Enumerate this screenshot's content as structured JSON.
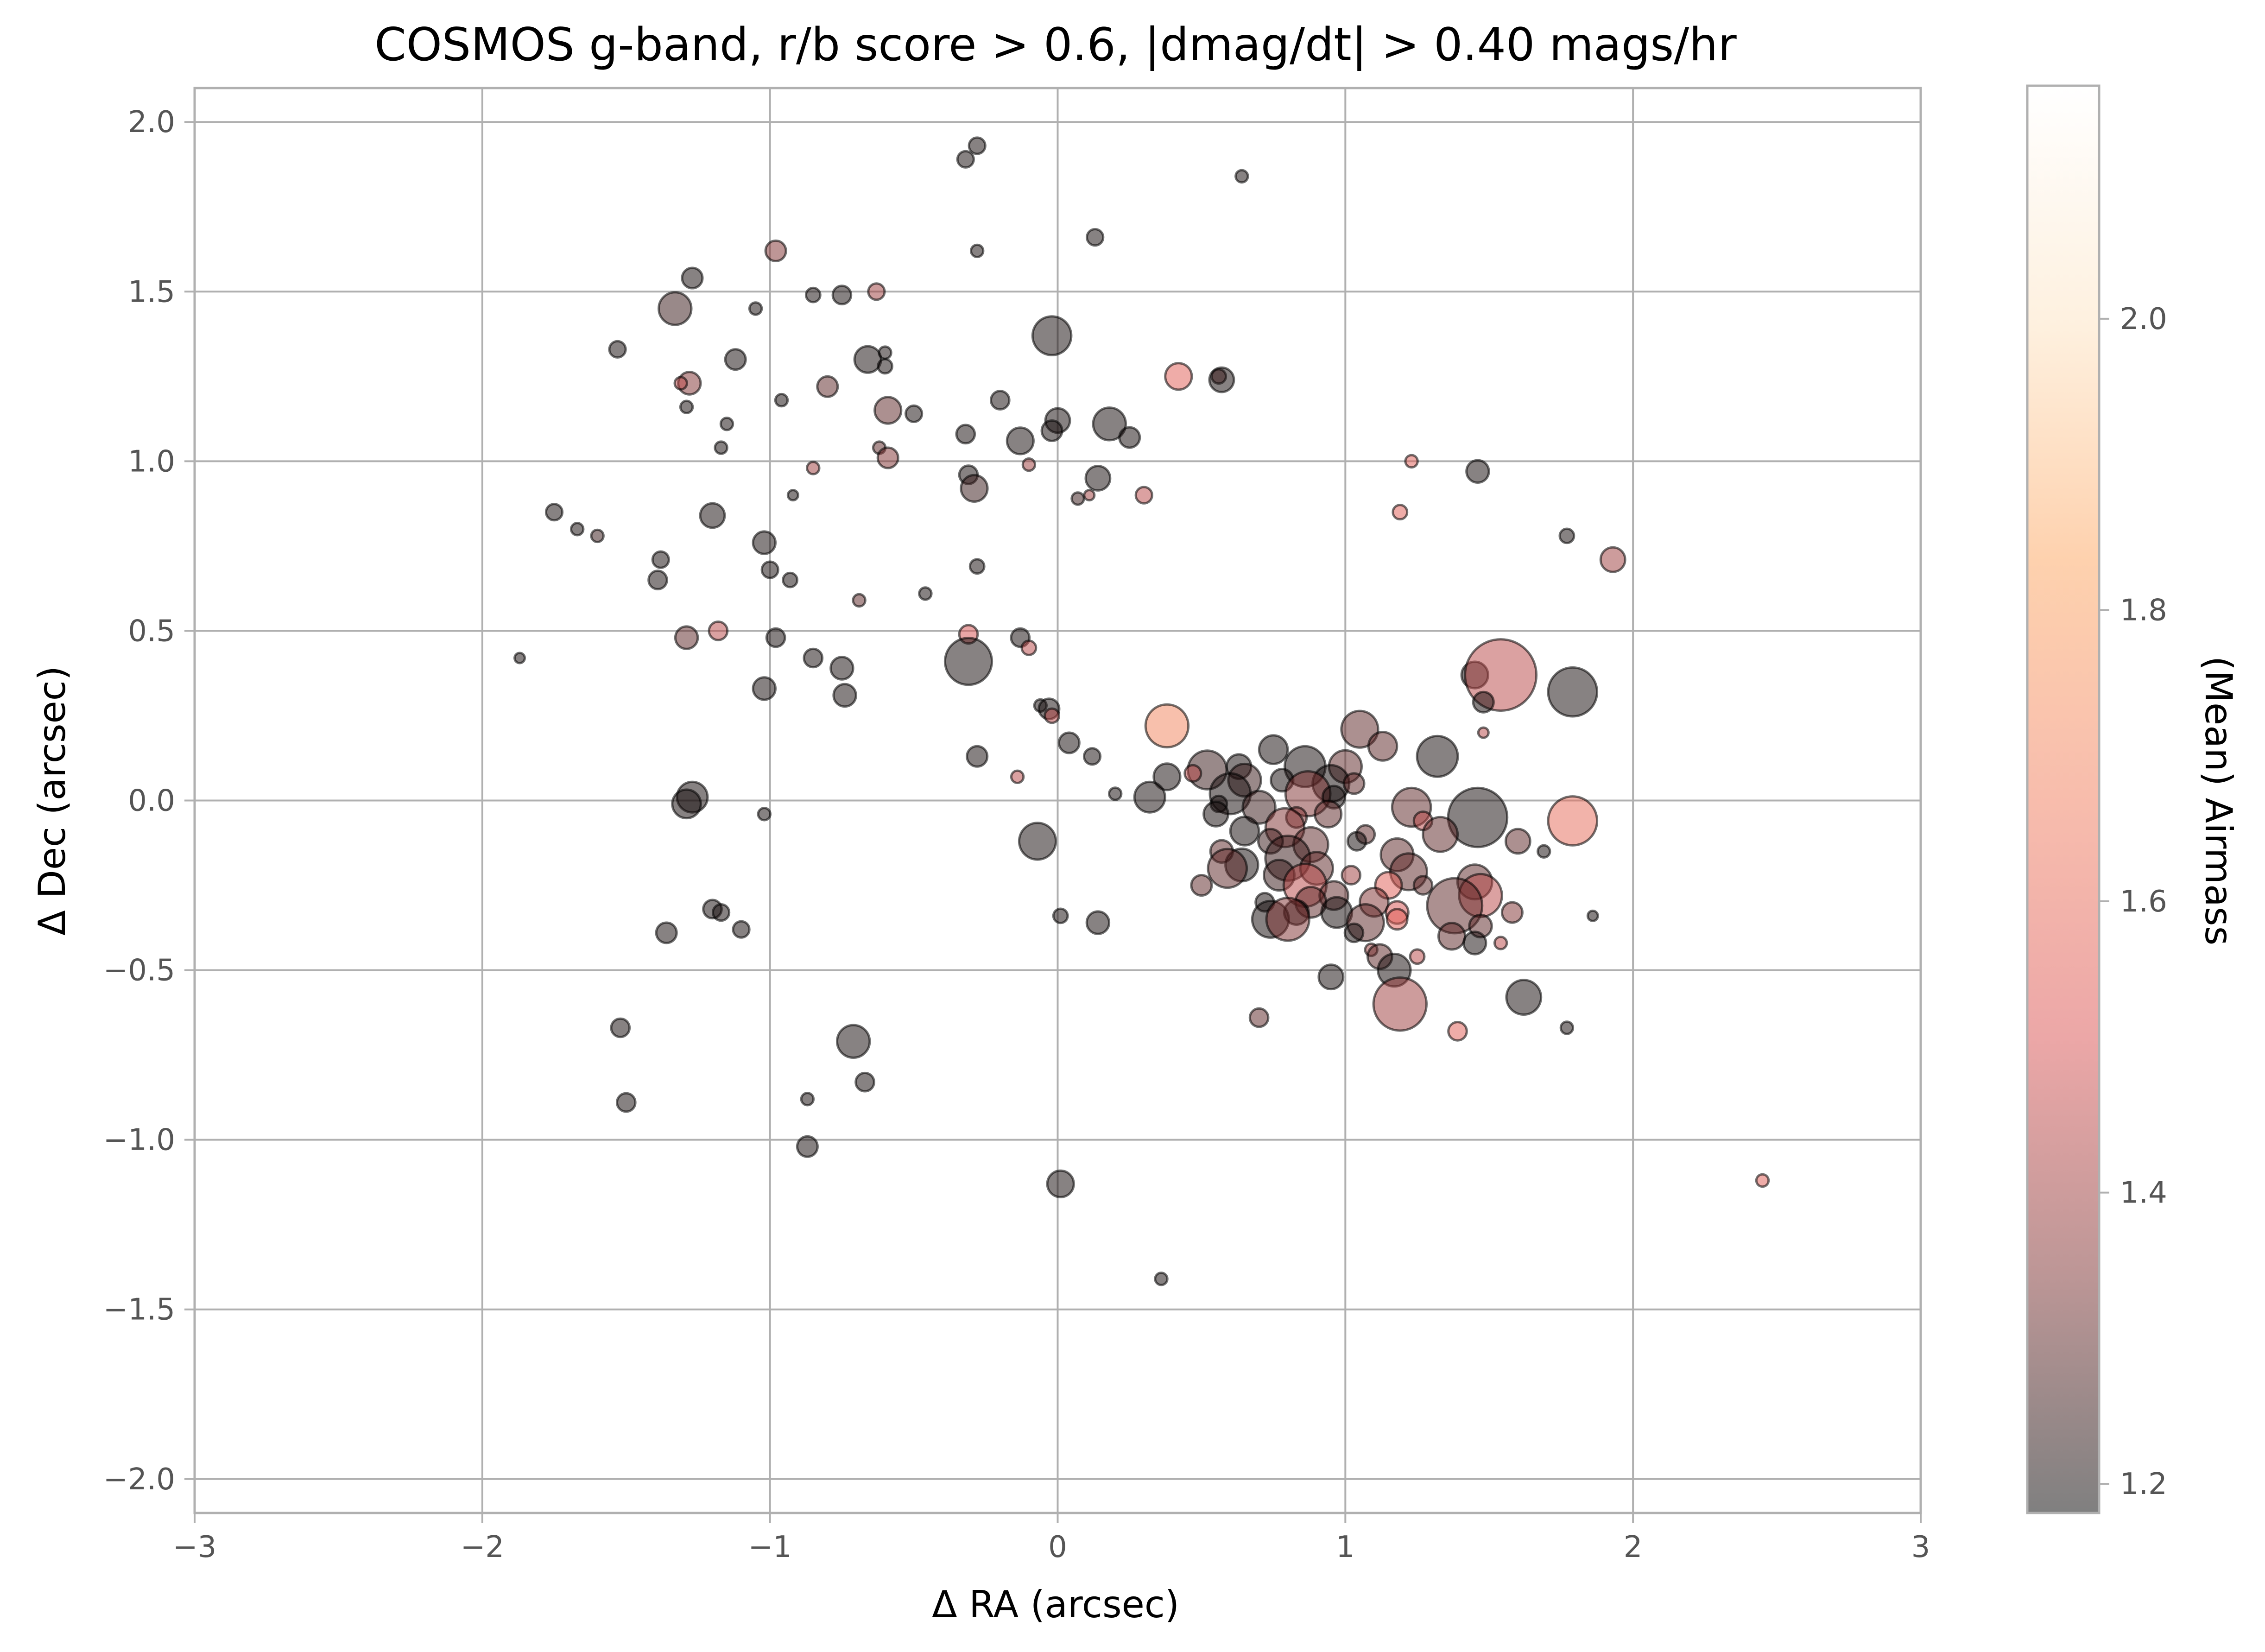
{
  "chart_data": {
    "type": "scatter",
    "title": "COSMOS g-band, r/b score > 0.6, |dmag/dt| > 0.40 mags/hr",
    "xlabel": "Δ RA (arcsec)",
    "ylabel": "Δ Dec (arcsec)",
    "xlim": [
      -3,
      3
    ],
    "ylim": [
      -2.1,
      2.1
    ],
    "xticks": [
      "−3",
      "−2",
      "−1",
      "0",
      "1",
      "2",
      "3"
    ],
    "yticks": [
      "−2.0",
      "−1.5",
      "−1.0",
      "−0.5",
      "0.0",
      "0.5",
      "1.0",
      "1.5",
      "2.0"
    ],
    "grid": true,
    "colorbar": {
      "label": "(Mean) Airmass",
      "range": [
        1.18,
        2.16
      ],
      "ticks": [
        "1.2",
        "1.4",
        "1.6",
        "1.8",
        "2.0"
      ],
      "colormap": [
        "#000000",
        "#7a2d2d",
        "#d94f4f",
        "#f07a5a",
        "#fca35c",
        "#fde2bf",
        "#ffffff"
      ],
      "alpha": 0.5
    },
    "marker_size_encoding": "relative marker size (1 = small, 4 = large)",
    "points": [
      {
        "x": -0.32,
        "y": 1.89,
        "airmass": 1.2,
        "size": 1.2
      },
      {
        "x": -0.28,
        "y": 1.93,
        "airmass": 1.2,
        "size": 1.2
      },
      {
        "x": 0.64,
        "y": 1.84,
        "airmass": 1.2,
        "size": 1.0
      },
      {
        "x": -0.98,
        "y": 1.62,
        "airmass": 1.35,
        "size": 1.4
      },
      {
        "x": -0.28,
        "y": 1.62,
        "airmass": 1.2,
        "size": 1.0
      },
      {
        "x": 0.13,
        "y": 1.66,
        "airmass": 1.2,
        "size": 1.2
      },
      {
        "x": -1.27,
        "y": 1.54,
        "airmass": 1.2,
        "size": 1.4
      },
      {
        "x": -1.33,
        "y": 1.45,
        "airmass": 1.25,
        "size": 2.0
      },
      {
        "x": -0.85,
        "y": 1.49,
        "airmass": 1.2,
        "size": 1.1
      },
      {
        "x": -0.75,
        "y": 1.49,
        "airmass": 1.2,
        "size": 1.3
      },
      {
        "x": -0.63,
        "y": 1.5,
        "airmass": 1.4,
        "size": 1.2
      },
      {
        "x": -1.05,
        "y": 1.45,
        "airmass": 1.2,
        "size": 1.0
      },
      {
        "x": -1.53,
        "y": 1.33,
        "airmass": 1.2,
        "size": 1.2
      },
      {
        "x": -0.02,
        "y": 1.37,
        "airmass": 1.2,
        "size": 2.3
      },
      {
        "x": -0.66,
        "y": 1.3,
        "airmass": 1.2,
        "size": 1.7
      },
      {
        "x": -0.6,
        "y": 1.32,
        "airmass": 1.2,
        "size": 1.0
      },
      {
        "x": -1.12,
        "y": 1.3,
        "airmass": 1.2,
        "size": 1.4
      },
      {
        "x": -0.6,
        "y": 1.28,
        "airmass": 1.2,
        "size": 1.1
      },
      {
        "x": -1.28,
        "y": 1.23,
        "airmass": 1.35,
        "size": 1.5
      },
      {
        "x": -1.31,
        "y": 1.23,
        "airmass": 1.45,
        "size": 1.0
      },
      {
        "x": -0.8,
        "y": 1.22,
        "airmass": 1.3,
        "size": 1.4
      },
      {
        "x": 0.42,
        "y": 1.25,
        "airmass": 1.55,
        "size": 1.7
      },
      {
        "x": 0.56,
        "y": 1.25,
        "airmass": 1.3,
        "size": 1.1
      },
      {
        "x": 0.57,
        "y": 1.24,
        "airmass": 1.2,
        "size": 1.6
      },
      {
        "x": -0.96,
        "y": 1.18,
        "airmass": 1.2,
        "size": 1.0
      },
      {
        "x": -1.29,
        "y": 1.16,
        "airmass": 1.2,
        "size": 1.0
      },
      {
        "x": -0.2,
        "y": 1.18,
        "airmass": 1.2,
        "size": 1.3
      },
      {
        "x": -0.59,
        "y": 1.15,
        "airmass": 1.3,
        "size": 1.7
      },
      {
        "x": -0.5,
        "y": 1.14,
        "airmass": 1.2,
        "size": 1.2
      },
      {
        "x": -1.15,
        "y": 1.11,
        "airmass": 1.2,
        "size": 1.0
      },
      {
        "x": 0.0,
        "y": 1.12,
        "airmass": 1.2,
        "size": 1.6
      },
      {
        "x": -0.02,
        "y": 1.09,
        "airmass": 1.2,
        "size": 1.4
      },
      {
        "x": 0.18,
        "y": 1.11,
        "airmass": 1.2,
        "size": 2.0
      },
      {
        "x": -0.32,
        "y": 1.08,
        "airmass": 1.2,
        "size": 1.3
      },
      {
        "x": 0.25,
        "y": 1.07,
        "airmass": 1.2,
        "size": 1.4
      },
      {
        "x": -0.13,
        "y": 1.06,
        "airmass": 1.2,
        "size": 1.7
      },
      {
        "x": -1.17,
        "y": 1.04,
        "airmass": 1.2,
        "size": 1.0
      },
      {
        "x": -0.62,
        "y": 1.04,
        "airmass": 1.3,
        "size": 1.0
      },
      {
        "x": -0.59,
        "y": 1.01,
        "airmass": 1.35,
        "size": 1.4
      },
      {
        "x": -0.85,
        "y": 0.98,
        "airmass": 1.4,
        "size": 1.0
      },
      {
        "x": -0.1,
        "y": 0.99,
        "airmass": 1.4,
        "size": 1.0
      },
      {
        "x": -0.31,
        "y": 0.96,
        "airmass": 1.2,
        "size": 1.3
      },
      {
        "x": 0.14,
        "y": 0.95,
        "airmass": 1.2,
        "size": 1.6
      },
      {
        "x": -0.29,
        "y": 0.92,
        "airmass": 1.25,
        "size": 1.7
      },
      {
        "x": 1.23,
        "y": 1.0,
        "airmass": 1.55,
        "size": 1.0
      },
      {
        "x": 1.46,
        "y": 0.97,
        "airmass": 1.2,
        "size": 1.5
      },
      {
        "x": -0.92,
        "y": 0.9,
        "airmass": 1.2,
        "size": 0.9
      },
      {
        "x": 0.07,
        "y": 0.89,
        "airmass": 1.25,
        "size": 1.0
      },
      {
        "x": 0.11,
        "y": 0.9,
        "airmass": 1.4,
        "size": 0.9
      },
      {
        "x": 0.3,
        "y": 0.9,
        "airmass": 1.45,
        "size": 1.2
      },
      {
        "x": -1.75,
        "y": 0.85,
        "airmass": 1.2,
        "size": 1.2
      },
      {
        "x": -1.2,
        "y": 0.84,
        "airmass": 1.2,
        "size": 1.6
      },
      {
        "x": 1.19,
        "y": 0.85,
        "airmass": 1.55,
        "size": 1.1
      },
      {
        "x": -1.67,
        "y": 0.8,
        "airmass": 1.2,
        "size": 1.0
      },
      {
        "x": -1.6,
        "y": 0.78,
        "airmass": 1.25,
        "size": 1.0
      },
      {
        "x": -1.02,
        "y": 0.76,
        "airmass": 1.2,
        "size": 1.5
      },
      {
        "x": 1.77,
        "y": 0.78,
        "airmass": 1.2,
        "size": 1.1
      },
      {
        "x": 1.93,
        "y": 0.71,
        "airmass": 1.4,
        "size": 1.6
      },
      {
        "x": -1.38,
        "y": 0.71,
        "airmass": 1.2,
        "size": 1.2
      },
      {
        "x": -1.0,
        "y": 0.68,
        "airmass": 1.2,
        "size": 1.2
      },
      {
        "x": -0.28,
        "y": 0.69,
        "airmass": 1.2,
        "size": 1.1
      },
      {
        "x": -1.39,
        "y": 0.65,
        "airmass": 1.2,
        "size": 1.3
      },
      {
        "x": -0.93,
        "y": 0.65,
        "airmass": 1.2,
        "size": 1.1
      },
      {
        "x": -0.46,
        "y": 0.61,
        "airmass": 1.2,
        "size": 1.0
      },
      {
        "x": -0.69,
        "y": 0.59,
        "airmass": 1.3,
        "size": 1.0
      },
      {
        "x": -1.29,
        "y": 0.48,
        "airmass": 1.3,
        "size": 1.5
      },
      {
        "x": -1.18,
        "y": 0.5,
        "airmass": 1.45,
        "size": 1.3
      },
      {
        "x": -0.98,
        "y": 0.48,
        "airmass": 1.2,
        "size": 1.3
      },
      {
        "x": -0.31,
        "y": 0.49,
        "airmass": 1.5,
        "size": 1.3
      },
      {
        "x": -0.13,
        "y": 0.48,
        "airmass": 1.2,
        "size": 1.3
      },
      {
        "x": -0.1,
        "y": 0.45,
        "airmass": 1.45,
        "size": 1.1
      },
      {
        "x": -1.87,
        "y": 0.42,
        "airmass": 1.2,
        "size": 0.9
      },
      {
        "x": -0.85,
        "y": 0.42,
        "airmass": 1.2,
        "size": 1.3
      },
      {
        "x": -0.31,
        "y": 0.41,
        "airmass": 1.2,
        "size": 2.7
      },
      {
        "x": -0.75,
        "y": 0.39,
        "airmass": 1.2,
        "size": 1.5
      },
      {
        "x": 1.45,
        "y": 0.37,
        "airmass": 1.2,
        "size": 1.7
      },
      {
        "x": 1.54,
        "y": 0.37,
        "airmass": 1.45,
        "size": 3.9
      },
      {
        "x": 1.79,
        "y": 0.32,
        "airmass": 1.2,
        "size": 2.8
      },
      {
        "x": -1.02,
        "y": 0.33,
        "airmass": 1.2,
        "size": 1.5
      },
      {
        "x": -0.74,
        "y": 0.31,
        "airmass": 1.2,
        "size": 1.5
      },
      {
        "x": 1.48,
        "y": 0.29,
        "airmass": 1.2,
        "size": 1.4
      },
      {
        "x": -0.06,
        "y": 0.28,
        "airmass": 1.2,
        "size": 1.0
      },
      {
        "x": -0.03,
        "y": 0.27,
        "airmass": 1.2,
        "size": 1.4
      },
      {
        "x": -0.02,
        "y": 0.25,
        "airmass": 1.45,
        "size": 1.1
      },
      {
        "x": 0.38,
        "y": 0.22,
        "airmass": 1.7,
        "size": 2.5
      },
      {
        "x": 1.05,
        "y": 0.21,
        "airmass": 1.3,
        "size": 2.2
      },
      {
        "x": 1.48,
        "y": 0.2,
        "airmass": 1.45,
        "size": 0.9
      },
      {
        "x": 0.04,
        "y": 0.17,
        "airmass": 1.2,
        "size": 1.4
      },
      {
        "x": 1.13,
        "y": 0.16,
        "airmass": 1.3,
        "size": 1.8
      },
      {
        "x": 0.75,
        "y": 0.15,
        "airmass": 1.2,
        "size": 1.8
      },
      {
        "x": -0.28,
        "y": 0.13,
        "airmass": 1.2,
        "size": 1.4
      },
      {
        "x": 0.12,
        "y": 0.13,
        "airmass": 1.2,
        "size": 1.2
      },
      {
        "x": 1.32,
        "y": 0.13,
        "airmass": 1.2,
        "size": 2.4
      },
      {
        "x": 0.52,
        "y": 0.09,
        "airmass": 1.25,
        "size": 2.3
      },
      {
        "x": 0.63,
        "y": 0.1,
        "airmass": 1.2,
        "size": 1.6
      },
      {
        "x": 0.86,
        "y": 0.1,
        "airmass": 1.2,
        "size": 2.4
      },
      {
        "x": 1.0,
        "y": 0.1,
        "airmass": 1.3,
        "size": 2.0
      },
      {
        "x": 0.38,
        "y": 0.07,
        "airmass": 1.2,
        "size": 1.7
      },
      {
        "x": 0.47,
        "y": 0.08,
        "airmass": 1.45,
        "size": 1.2
      },
      {
        "x": -0.14,
        "y": 0.07,
        "airmass": 1.45,
        "size": 1.0
      },
      {
        "x": 0.65,
        "y": 0.06,
        "airmass": 1.25,
        "size": 2.0
      },
      {
        "x": 0.78,
        "y": 0.06,
        "airmass": 1.2,
        "size": 1.5
      },
      {
        "x": 0.95,
        "y": 0.05,
        "airmass": 1.2,
        "size": 2.2
      },
      {
        "x": 1.03,
        "y": 0.05,
        "airmass": 1.3,
        "size": 1.4
      },
      {
        "x": 0.6,
        "y": 0.02,
        "airmass": 1.2,
        "size": 2.4
      },
      {
        "x": 0.87,
        "y": 0.02,
        "airmass": 1.35,
        "size": 2.6
      },
      {
        "x": 0.96,
        "y": 0.01,
        "airmass": 1.2,
        "size": 1.5
      },
      {
        "x": 0.2,
        "y": 0.02,
        "airmass": 1.2,
        "size": 1.0
      },
      {
        "x": 0.32,
        "y": 0.01,
        "airmass": 1.2,
        "size": 1.9
      },
      {
        "x": -1.27,
        "y": 0.01,
        "airmass": 1.2,
        "size": 1.9
      },
      {
        "x": -1.29,
        "y": -0.01,
        "airmass": 1.2,
        "size": 1.8
      },
      {
        "x": 0.56,
        "y": -0.01,
        "airmass": 1.2,
        "size": 1.2
      },
      {
        "x": 0.7,
        "y": -0.02,
        "airmass": 1.25,
        "size": 2.0
      },
      {
        "x": 1.23,
        "y": -0.02,
        "airmass": 1.3,
        "size": 2.3
      },
      {
        "x": 1.46,
        "y": -0.05,
        "airmass": 1.2,
        "size": 3.3
      },
      {
        "x": -1.02,
        "y": -0.04,
        "airmass": 1.2,
        "size": 1.0
      },
      {
        "x": 0.55,
        "y": -0.04,
        "airmass": 1.2,
        "size": 1.6
      },
      {
        "x": 0.83,
        "y": -0.05,
        "airmass": 1.35,
        "size": 1.4
      },
      {
        "x": 0.94,
        "y": -0.04,
        "airmass": 1.3,
        "size": 1.7
      },
      {
        "x": 1.27,
        "y": -0.06,
        "airmass": 1.45,
        "size": 1.3
      },
      {
        "x": 1.79,
        "y": -0.06,
        "airmass": 1.6,
        "size": 2.8
      },
      {
        "x": 0.65,
        "y": -0.09,
        "airmass": 1.2,
        "size": 1.8
      },
      {
        "x": 0.79,
        "y": -0.08,
        "airmass": 1.35,
        "size": 2.3
      },
      {
        "x": 1.07,
        "y": -0.1,
        "airmass": 1.3,
        "size": 1.3
      },
      {
        "x": 1.33,
        "y": -0.1,
        "airmass": 1.3,
        "size": 2.1
      },
      {
        "x": -0.07,
        "y": -0.12,
        "airmass": 1.2,
        "size": 2.2
      },
      {
        "x": 0.74,
        "y": -0.12,
        "airmass": 1.25,
        "size": 1.6
      },
      {
        "x": 0.88,
        "y": -0.13,
        "airmass": 1.3,
        "size": 2.1
      },
      {
        "x": 1.04,
        "y": -0.12,
        "airmass": 1.2,
        "size": 1.3
      },
      {
        "x": 1.6,
        "y": -0.12,
        "airmass": 1.3,
        "size": 1.6
      },
      {
        "x": 0.57,
        "y": -0.15,
        "airmass": 1.3,
        "size": 1.5
      },
      {
        "x": 0.8,
        "y": -0.17,
        "airmass": 1.25,
        "size": 2.6
      },
      {
        "x": 1.18,
        "y": -0.16,
        "airmass": 1.3,
        "size": 2.0
      },
      {
        "x": 1.69,
        "y": -0.15,
        "airmass": 1.2,
        "size": 1.0
      },
      {
        "x": 0.64,
        "y": -0.19,
        "airmass": 1.2,
        "size": 2.0
      },
      {
        "x": 0.9,
        "y": -0.2,
        "airmass": 1.3,
        "size": 2.0
      },
      {
        "x": 1.02,
        "y": -0.22,
        "airmass": 1.4,
        "size": 1.3
      },
      {
        "x": 0.59,
        "y": -0.2,
        "airmass": 1.3,
        "size": 2.3
      },
      {
        "x": 0.77,
        "y": -0.22,
        "airmass": 1.25,
        "size": 1.9
      },
      {
        "x": 1.22,
        "y": -0.21,
        "airmass": 1.3,
        "size": 2.2
      },
      {
        "x": 1.45,
        "y": -0.24,
        "airmass": 1.3,
        "size": 2.1
      },
      {
        "x": 0.5,
        "y": -0.25,
        "airmass": 1.3,
        "size": 1.4
      },
      {
        "x": 0.86,
        "y": -0.25,
        "airmass": 1.45,
        "size": 2.5
      },
      {
        "x": 1.15,
        "y": -0.25,
        "airmass": 1.55,
        "size": 1.7
      },
      {
        "x": 1.27,
        "y": -0.25,
        "airmass": 1.3,
        "size": 1.3
      },
      {
        "x": 0.96,
        "y": -0.28,
        "airmass": 1.3,
        "size": 1.8
      },
      {
        "x": 1.47,
        "y": -0.28,
        "airmass": 1.45,
        "size": 2.5
      },
      {
        "x": 0.72,
        "y": -0.3,
        "airmass": 1.2,
        "size": 1.3
      },
      {
        "x": 0.88,
        "y": -0.3,
        "airmass": 1.3,
        "size": 1.9
      },
      {
        "x": 1.1,
        "y": -0.3,
        "airmass": 1.35,
        "size": 1.8
      },
      {
        "x": 1.38,
        "y": -0.31,
        "airmass": 1.3,
        "size": 3.1
      },
      {
        "x": -1.2,
        "y": -0.32,
        "airmass": 1.2,
        "size": 1.3
      },
      {
        "x": -1.17,
        "y": -0.33,
        "airmass": 1.2,
        "size": 1.2
      },
      {
        "x": 0.01,
        "y": -0.34,
        "airmass": 1.2,
        "size": 1.1
      },
      {
        "x": 0.83,
        "y": -0.33,
        "airmass": 1.2,
        "size": 1.6
      },
      {
        "x": 0.97,
        "y": -0.33,
        "airmass": 1.2,
        "size": 1.9
      },
      {
        "x": 1.18,
        "y": -0.33,
        "airmass": 1.5,
        "size": 1.5
      },
      {
        "x": 1.58,
        "y": -0.33,
        "airmass": 1.35,
        "size": 1.4
      },
      {
        "x": 1.86,
        "y": -0.34,
        "airmass": 1.2,
        "size": 0.9
      },
      {
        "x": 0.74,
        "y": -0.35,
        "airmass": 1.2,
        "size": 2.2
      },
      {
        "x": 0.8,
        "y": -0.35,
        "airmass": 1.35,
        "size": 2.5
      },
      {
        "x": 1.07,
        "y": -0.36,
        "airmass": 1.3,
        "size": 2.2
      },
      {
        "x": 0.14,
        "y": -0.36,
        "airmass": 1.2,
        "size": 1.5
      },
      {
        "x": 1.18,
        "y": -0.35,
        "airmass": 1.55,
        "size": 1.4
      },
      {
        "x": 1.47,
        "y": -0.37,
        "airmass": 1.3,
        "size": 1.5
      },
      {
        "x": -1.1,
        "y": -0.38,
        "airmass": 1.2,
        "size": 1.2
      },
      {
        "x": -1.36,
        "y": -0.39,
        "airmass": 1.2,
        "size": 1.4
      },
      {
        "x": 1.03,
        "y": -0.39,
        "airmass": 1.2,
        "size": 1.3
      },
      {
        "x": 1.37,
        "y": -0.4,
        "airmass": 1.3,
        "size": 1.7
      },
      {
        "x": 1.54,
        "y": -0.42,
        "airmass": 1.45,
        "size": 1.0
      },
      {
        "x": 1.45,
        "y": -0.42,
        "airmass": 1.2,
        "size": 1.5
      },
      {
        "x": 1.09,
        "y": -0.44,
        "airmass": 1.4,
        "size": 1.0
      },
      {
        "x": 1.12,
        "y": -0.46,
        "airmass": 1.3,
        "size": 1.6
      },
      {
        "x": 1.25,
        "y": -0.46,
        "airmass": 1.45,
        "size": 1.1
      },
      {
        "x": 1.17,
        "y": -0.5,
        "airmass": 1.2,
        "size": 2.0
      },
      {
        "x": 0.95,
        "y": -0.52,
        "airmass": 1.2,
        "size": 1.6
      },
      {
        "x": 1.62,
        "y": -0.58,
        "airmass": 1.2,
        "size": 2.1
      },
      {
        "x": 1.19,
        "y": -0.6,
        "airmass": 1.4,
        "size": 3.0
      },
      {
        "x": 0.7,
        "y": -0.64,
        "airmass": 1.3,
        "size": 1.3
      },
      {
        "x": 1.39,
        "y": -0.68,
        "airmass": 1.55,
        "size": 1.3
      },
      {
        "x": 1.77,
        "y": -0.67,
        "airmass": 1.2,
        "size": 1.0
      },
      {
        "x": -1.52,
        "y": -0.67,
        "airmass": 1.2,
        "size": 1.3
      },
      {
        "x": -0.71,
        "y": -0.71,
        "airmass": 1.2,
        "size": 2.0
      },
      {
        "x": -0.67,
        "y": -0.83,
        "airmass": 1.2,
        "size": 1.3
      },
      {
        "x": -0.87,
        "y": -0.88,
        "airmass": 1.2,
        "size": 1.0
      },
      {
        "x": -1.5,
        "y": -0.89,
        "airmass": 1.2,
        "size": 1.3
      },
      {
        "x": -0.87,
        "y": -1.02,
        "airmass": 1.2,
        "size": 1.4
      },
      {
        "x": 0.01,
        "y": -1.13,
        "airmass": 1.2,
        "size": 1.7
      },
      {
        "x": 2.45,
        "y": -1.12,
        "airmass": 1.55,
        "size": 1.0
      },
      {
        "x": 0.36,
        "y": -1.41,
        "airmass": 1.2,
        "size": 1.0
      }
    ]
  }
}
